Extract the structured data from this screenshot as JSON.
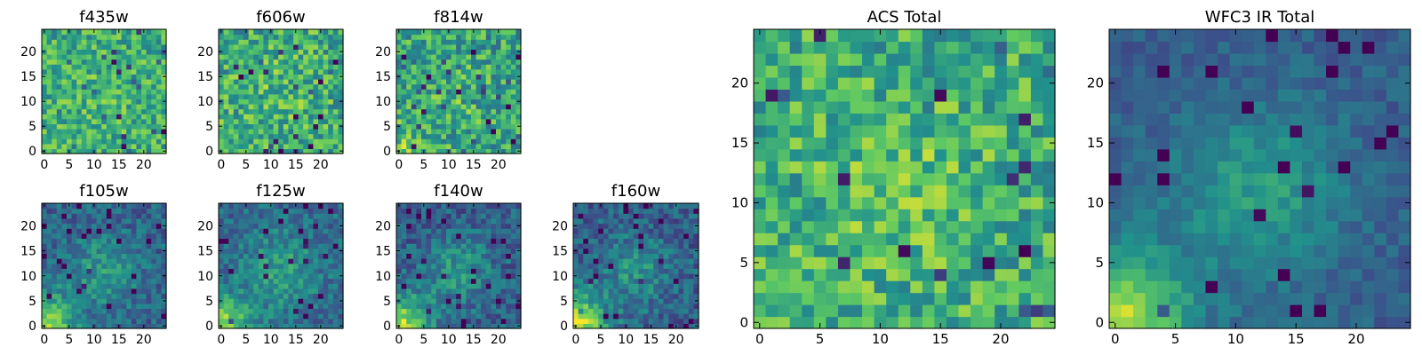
{
  "chart_data": [
    {
      "id": "p_f435w",
      "type": "heatmap",
      "title": "f435w",
      "grid_size": 25,
      "xlim": [
        0,
        24
      ],
      "ylim": [
        0,
        24
      ],
      "xticks": [
        0,
        5,
        10,
        15,
        20
      ],
      "yticks": [
        0,
        5,
        10,
        15,
        20
      ],
      "pattern": {
        "base": 0.62,
        "noise": 0.22,
        "blob": 0.05,
        "corner": 0.05,
        "seed": 435
      }
    },
    {
      "id": "p_f606w",
      "type": "heatmap",
      "title": "f606w",
      "grid_size": 25,
      "xlim": [
        0,
        24
      ],
      "ylim": [
        0,
        24
      ],
      "xticks": [
        0,
        5,
        10,
        15,
        20
      ],
      "yticks": [
        0,
        5,
        10,
        15,
        20
      ],
      "pattern": {
        "base": 0.62,
        "noise": 0.24,
        "blob": 0.06,
        "corner": 0.05,
        "seed": 606
      }
    },
    {
      "id": "p_f814w",
      "type": "heatmap",
      "title": "f814w",
      "grid_size": 25,
      "xlim": [
        0,
        24
      ],
      "ylim": [
        0,
        24
      ],
      "xticks": [
        0,
        5,
        10,
        15,
        20
      ],
      "yticks": [
        0,
        5,
        10,
        15,
        20
      ],
      "pattern": {
        "base": 0.58,
        "noise": 0.24,
        "blob": 0.08,
        "corner": 0.18,
        "seed": 814
      }
    },
    {
      "id": "p_acs",
      "type": "heatmap",
      "title": "ACS Total",
      "grid_size": 25,
      "xlim": [
        0,
        24
      ],
      "ylim": [
        0,
        24
      ],
      "xticks": [
        0,
        5,
        10,
        15,
        20
      ],
      "yticks": [
        0,
        5,
        10,
        15,
        20
      ],
      "pattern": {
        "base": 0.62,
        "noise": 0.22,
        "blob": 0.1,
        "corner": 0.08,
        "seed": 1234
      }
    },
    {
      "id": "p_wfc3",
      "type": "heatmap",
      "title": "WFC3 IR Total",
      "grid_size": 25,
      "xlim": [
        0,
        24
      ],
      "ylim": [
        0,
        24
      ],
      "xticks": [
        0,
        5,
        10,
        15,
        20
      ],
      "yticks": [
        0,
        5,
        10,
        15,
        20
      ],
      "pattern": {
        "base": 0.3,
        "noise": 0.08,
        "blob": 0.25,
        "corner": 0.6,
        "seed": 2222
      }
    },
    {
      "id": "p_f105w",
      "type": "heatmap",
      "title": "f105w",
      "grid_size": 25,
      "xlim": [
        0,
        24
      ],
      "ylim": [
        0,
        24
      ],
      "xticks": [
        0,
        5,
        10,
        15,
        20
      ],
      "yticks": [
        0,
        5,
        10,
        15,
        20
      ],
      "pattern": {
        "base": 0.32,
        "noise": 0.14,
        "blob": 0.22,
        "corner": 0.55,
        "seed": 105
      }
    },
    {
      "id": "p_f125w",
      "type": "heatmap",
      "title": "f125w",
      "grid_size": 25,
      "xlim": [
        0,
        24
      ],
      "ylim": [
        0,
        24
      ],
      "xticks": [
        0,
        5,
        10,
        15,
        20
      ],
      "yticks": [
        0,
        5,
        10,
        15,
        20
      ],
      "pattern": {
        "base": 0.35,
        "noise": 0.14,
        "blob": 0.22,
        "corner": 0.5,
        "seed": 125
      }
    },
    {
      "id": "p_f140w",
      "type": "heatmap",
      "title": "f140w",
      "grid_size": 25,
      "xlim": [
        0,
        24
      ],
      "ylim": [
        0,
        24
      ],
      "xticks": [
        0,
        5,
        10,
        15,
        20
      ],
      "yticks": [
        0,
        5,
        10,
        15,
        20
      ],
      "pattern": {
        "base": 0.3,
        "noise": 0.15,
        "blob": 0.22,
        "corner": 0.6,
        "seed": 140
      }
    },
    {
      "id": "p_f160w",
      "type": "heatmap",
      "title": "f160w",
      "grid_size": 25,
      "xlim": [
        0,
        24
      ],
      "ylim": [
        0,
        24
      ],
      "xticks": [
        0,
        5,
        10,
        15,
        20
      ],
      "yticks": [
        0,
        5,
        10,
        15,
        20
      ],
      "pattern": {
        "base": 0.3,
        "noise": 0.15,
        "blob": 0.2,
        "corner": 0.65,
        "seed": 160
      }
    }
  ],
  "colormap": [
    "#440154",
    "#3b528b",
    "#21918c",
    "#5ec962",
    "#fde725"
  ]
}
